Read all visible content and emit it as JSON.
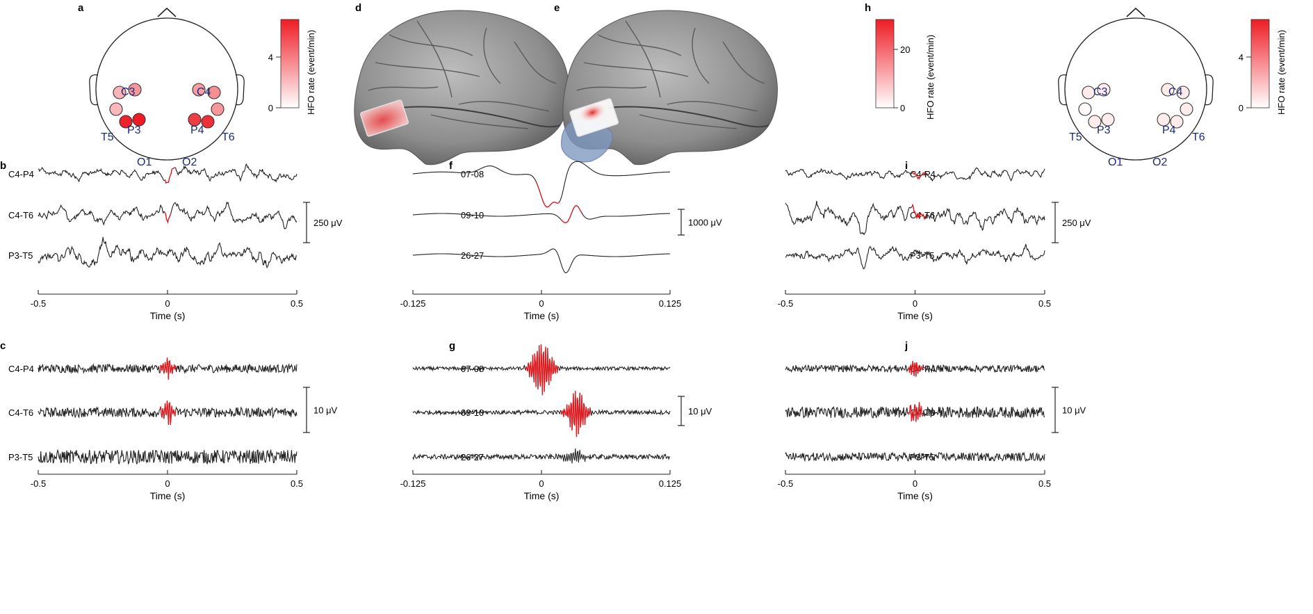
{
  "panel_letters": {
    "a": "a",
    "b": "b",
    "c": "c",
    "d": "d",
    "e": "e",
    "f": "f",
    "g": "g",
    "h": "h",
    "i": "i",
    "j": "j"
  },
  "colorbars": {
    "a": {
      "label": "HFO rate (event/min)",
      "ticks": [
        "0",
        "4"
      ],
      "max": 7,
      "top_color": "#ee1c24"
    },
    "e": {
      "label": "HFO rate (event/min)",
      "ticks": [
        "0",
        "20"
      ],
      "max": 30,
      "top_color": "#ee1c24"
    },
    "h": {
      "label": "HFO rate (event/min)",
      "ticks": [
        "0",
        "4"
      ],
      "max": 7,
      "top_color": "#ee1c24"
    }
  },
  "scalp_a": {
    "labels": {
      "c3": "C3",
      "c4": "C4",
      "t5": "T5",
      "p3": "P3",
      "p4": "P4",
      "t6": "T6",
      "o1": "O1",
      "o2": "O2"
    },
    "rates": [
      2.3,
      3.2,
      3.0,
      3.5,
      2.2,
      3.2,
      6.8,
      7.0,
      6.0,
      6.4
    ]
  },
  "scalp_h": {
    "labels": {
      "c3": "C3",
      "c4": "C4",
      "t5": "T5",
      "p3": "P3",
      "p4": "P4",
      "t6": "T6",
      "o1": "O1",
      "o2": "O2"
    },
    "rates": [
      0.6,
      0.6,
      0.6,
      0.6,
      0.2,
      0.6,
      0.6,
      0.6,
      0.6,
      0.6
    ]
  },
  "channels": {
    "b": [
      "C4-P4",
      "C4-T6",
      "P3-T5"
    ],
    "c": [
      "C4-P4",
      "C4-T6",
      "P3-T5"
    ],
    "f": [
      "07-08",
      "09-10",
      "26-27"
    ],
    "g": [
      "07-08",
      "09-10",
      "26-27"
    ],
    "i": [
      "C4-P4",
      "C4-T6",
      "P3-T5"
    ],
    "j": [
      "C4-P4",
      "C4-T6",
      "P3-T5"
    ]
  },
  "scales": {
    "b": "250 μV",
    "c": "10 μV",
    "f": "1000 μV",
    "g": "10 μV",
    "i": "250 μV",
    "j": "10 μV"
  },
  "axes": {
    "b": {
      "xlabel": "Time (s)",
      "ticks": [
        "-0.5",
        "0",
        "0.5"
      ],
      "xlim": [
        -0.5,
        0.5
      ]
    },
    "c": {
      "xlabel": "Time (s)",
      "ticks": [
        "-0.5",
        "0",
        "0.5"
      ],
      "xlim": [
        -0.5,
        0.5
      ]
    },
    "f": {
      "xlabel": "Time (s)",
      "ticks": [
        "-0.125",
        "0",
        "0.125"
      ],
      "xlim": [
        -0.125,
        0.125
      ]
    },
    "g": {
      "xlabel": "Time (s)",
      "ticks": [
        "-0.125",
        "0",
        "0.125"
      ],
      "xlim": [
        -0.125,
        0.125
      ]
    },
    "i": {
      "xlabel": "Time (s)",
      "ticks": [
        "-0.5",
        "0",
        "0.5"
      ],
      "xlim": [
        -0.5,
        0.5
      ]
    },
    "j": {
      "xlabel": "Time (s)",
      "ticks": [
        "-0.5",
        "0",
        "0.5"
      ],
      "xlim": [
        -0.5,
        0.5
      ]
    }
  },
  "colors": {
    "trace": "#222222",
    "hfo": "#e3161c",
    "axis": "#222222",
    "label_blue": "#1a2a7a",
    "brain": "#8a8a8a",
    "grid_overlay": "#f0a0a0",
    "resection": "#8098c0"
  }
}
